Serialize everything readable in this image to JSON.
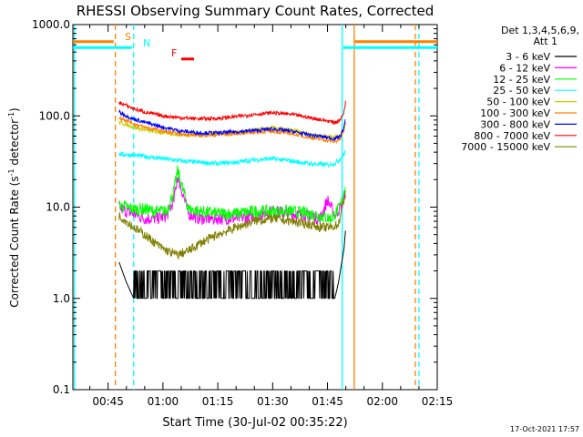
{
  "chart_data": {
    "type": "line",
    "title": "RHESSI Observing Summary Count Rates, Corrected",
    "xlabel": "Start Time (30-Jul-02 00:35:22)",
    "ylabel_main": "Corrected Count Rate (s",
    "ylabel_sup": "-1",
    "ylabel_mid": " detector",
    "ylabel_end": ")",
    "yscale": "log",
    "ylim": [
      0.1,
      1000
    ],
    "xlim_minutes": [
      35.37,
      135.0
    ],
    "y_ticks": [
      {
        "value": 1000,
        "label": "1000.0"
      },
      {
        "value": 100,
        "label": "100.0"
      },
      {
        "value": 10,
        "label": "10.0"
      },
      {
        "value": 1,
        "label": "1.0"
      },
      {
        "value": 0.1,
        "label": "0.1"
      }
    ],
    "x_ticks": [
      {
        "minute": 45,
        "label": "00:45"
      },
      {
        "minute": 60,
        "label": "01:00"
      },
      {
        "minute": 75,
        "label": "01:15"
      },
      {
        "minute": 90,
        "label": "01:30"
      },
      {
        "minute": 105,
        "label": "01:45"
      },
      {
        "minute": 120,
        "label": "02:00"
      },
      {
        "minute": 135,
        "label": "02:15"
      }
    ],
    "legend": {
      "position": "right",
      "header1": "Det 1,3,4,5,6,9,",
      "header2": "Att 1"
    },
    "series": [
      {
        "name": "3 - 6 keV",
        "color": "#000000",
        "x": [
          48,
          50,
          52,
          55,
          60,
          65,
          70,
          75,
          80,
          85,
          90,
          95,
          100,
          105,
          107,
          108,
          109.5,
          110
        ],
        "values": [
          2.5,
          1.5,
          1.0,
          1.0,
          1.0,
          1.0,
          1.0,
          1.0,
          1.0,
          1.0,
          1.0,
          1.0,
          1.0,
          1.0,
          1.0,
          1.5,
          3.5,
          6.0
        ]
      },
      {
        "name": "6 - 12 keV",
        "color": "#ff00ff",
        "x": [
          48,
          50,
          52,
          55,
          58,
          61,
          63,
          64,
          67,
          70,
          75,
          80,
          85,
          90,
          95,
          100,
          103,
          105,
          107,
          108.5,
          109.5,
          110
        ],
        "values": [
          10,
          9,
          8.5,
          7.5,
          7.5,
          8,
          12,
          22,
          8.5,
          7.5,
          7.5,
          7.5,
          8,
          9,
          8.5,
          8,
          7.5,
          12,
          8,
          10,
          12,
          16
        ]
      },
      {
        "name": "12 - 25 keV",
        "color": "#00ff00",
        "x": [
          48,
          50,
          52,
          55,
          58,
          61,
          63,
          64,
          67,
          70,
          75,
          80,
          85,
          90,
          95,
          100,
          103,
          106,
          108.5,
          109.5,
          110
        ],
        "values": [
          10.5,
          10,
          9.5,
          9.5,
          9,
          9,
          15,
          25,
          9.5,
          9,
          8.5,
          8.5,
          9,
          9,
          9,
          8.5,
          8,
          7.5,
          10,
          15,
          19
        ]
      },
      {
        "name": "25 - 50 keV",
        "color": "#00ffff",
        "x": [
          48,
          52,
          55,
          60,
          65,
          70,
          75,
          80,
          85,
          90,
          95,
          100,
          105,
          107,
          108.5,
          109.5,
          110
        ],
        "values": [
          38,
          37,
          36,
          34,
          32,
          31,
          30,
          31,
          33,
          34,
          32,
          30,
          29,
          30,
          34,
          38,
          41
        ]
      },
      {
        "name": "50 - 100 keV",
        "color": "#cccc00",
        "x": [
          48,
          50,
          52,
          55,
          60,
          65,
          70,
          75,
          80,
          85,
          90,
          95,
          100,
          105,
          107,
          108.5,
          109.5,
          110
        ],
        "values": [
          85,
          80,
          75,
          70,
          65,
          62,
          62,
          64,
          66,
          70,
          74,
          70,
          63,
          60,
          58,
          62,
          72,
          85
        ]
      },
      {
        "name": "100 - 300 keV",
        "color": "#ff8000",
        "x": [
          48,
          50,
          52,
          55,
          60,
          65,
          70,
          75,
          80,
          85,
          90,
          95,
          100,
          105,
          107,
          108.5,
          109.5,
          110
        ],
        "values": [
          95,
          90,
          82,
          75,
          68,
          63,
          61,
          62,
          64,
          66,
          68,
          64,
          58,
          54,
          52,
          56,
          70,
          90
        ]
      },
      {
        "name": "300 - 800 keV",
        "color": "#0000ff",
        "x": [
          48,
          50,
          52,
          55,
          60,
          65,
          70,
          75,
          80,
          85,
          90,
          95,
          100,
          105,
          107,
          108.5,
          109.5,
          110
        ],
        "values": [
          110,
          100,
          92,
          85,
          75,
          68,
          65,
          65,
          67,
          69,
          72,
          68,
          62,
          58,
          56,
          60,
          75,
          95
        ]
      },
      {
        "name": "800 - 7000 keV",
        "color": "#ff0000",
        "x": [
          48,
          50,
          52,
          55,
          60,
          65,
          70,
          75,
          80,
          85,
          90,
          95,
          100,
          105,
          107,
          108.5,
          109.5,
          110
        ],
        "values": [
          140,
          130,
          120,
          110,
          100,
          95,
          93,
          94,
          98,
          104,
          108,
          104,
          96,
          88,
          85,
          90,
          110,
          150
        ]
      },
      {
        "name": "7000 - 15000 keV",
        "color": "#808000",
        "x": [
          48,
          50,
          52,
          55,
          58,
          60,
          62,
          64,
          66,
          68,
          70,
          75,
          80,
          85,
          90,
          95,
          100,
          103,
          106,
          108,
          109.5,
          110
        ],
        "values": [
          8,
          7,
          6,
          5,
          4,
          3.5,
          3.2,
          3,
          3.2,
          3.5,
          4,
          5,
          6,
          7,
          7.5,
          7,
          6.5,
          6,
          6,
          6.5,
          12,
          16
        ]
      }
    ],
    "annotations": [
      {
        "label": "S",
        "color": "#ff8000"
      },
      {
        "label": "N",
        "color": "#00ffff"
      },
      {
        "label": "F",
        "color": "#ff0000"
      }
    ],
    "vertical_lines": [
      {
        "minute": 35.8,
        "color": "#00ffff",
        "style": "solid"
      },
      {
        "minute": 47.0,
        "color": "#ff8000",
        "style": "dashed"
      },
      {
        "minute": 52.0,
        "color": "#00ffff",
        "style": "dashed"
      },
      {
        "minute": 109.0,
        "color": "#00ffff",
        "style": "solid"
      },
      {
        "minute": 112.3,
        "color": "#ff8000",
        "style": "solid"
      },
      {
        "minute": 129.0,
        "color": "#ff8000",
        "style": "dashed"
      },
      {
        "minute": 130.0,
        "color": "#00ffff",
        "style": "dashed"
      }
    ],
    "attenuator_bars": [
      {
        "name": "saa-orange",
        "start": 35.37,
        "end": 46.5,
        "value": 650,
        "color": "#ff8000"
      },
      {
        "name": "night-cyan",
        "start": 35.37,
        "end": 51.5,
        "value": 560,
        "color": "#00ffff"
      },
      {
        "name": "saa-orange-2",
        "start": 112.5,
        "end": 135.0,
        "value": 650,
        "color": "#ff8000"
      },
      {
        "name": "night-cyan-2",
        "start": 109.3,
        "end": 135.0,
        "value": 560,
        "color": "#00ffff"
      },
      {
        "name": "flare-red",
        "start": 65.0,
        "end": 68.5,
        "value": 420,
        "color": "#ff0000"
      }
    ],
    "timestamp": "17-Oct-2021 17:57"
  }
}
